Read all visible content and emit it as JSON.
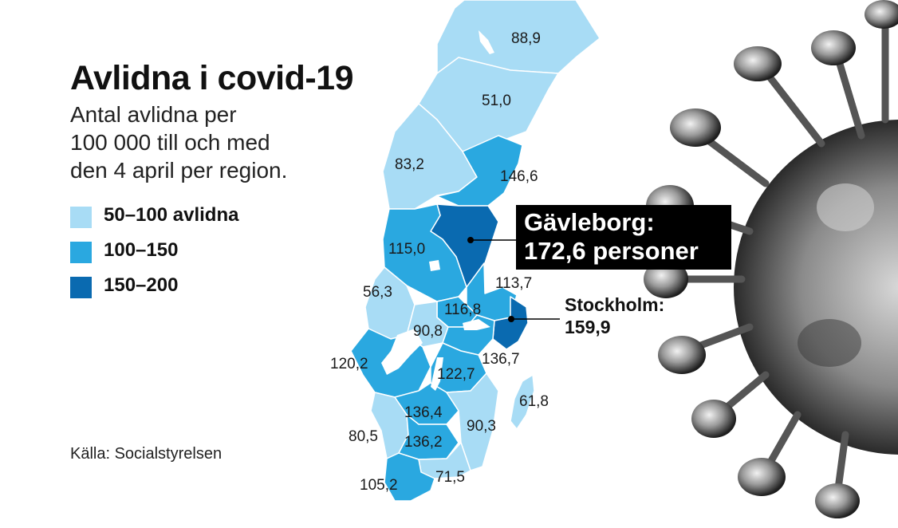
{
  "title": "Avlidna i covid-19",
  "subtitle_lines": [
    "Antal avlidna per",
    "100 000 till och med",
    "den 4 april per region."
  ],
  "legend": [
    {
      "label": "50–100 avlidna",
      "color": "#a8dcf5"
    },
    {
      "label": "100–150",
      "color": "#2aa8e0"
    },
    {
      "label": "150–200",
      "color": "#0a6ab0"
    }
  ],
  "source": "Källa: Socialstyrelsen",
  "regions": [
    {
      "name": "Norrbotten",
      "value": "88,9"
    },
    {
      "name": "Västerbotten",
      "value": "51,0"
    },
    {
      "name": "Jämtland",
      "value": "83,2"
    },
    {
      "name": "Västernorrland",
      "value": "146,6"
    },
    {
      "name": "Gävleborg",
      "value": "172,6"
    },
    {
      "name": "Dalarna",
      "value": "115,0"
    },
    {
      "name": "Uppsala",
      "value": "113,7"
    },
    {
      "name": "Värmland",
      "value": "56,3"
    },
    {
      "name": "Västmanland",
      "value": "116,8"
    },
    {
      "name": "Örebro",
      "value": "90,8"
    },
    {
      "name": "Stockholm",
      "value": "159,9"
    },
    {
      "name": "Södermanland",
      "value": "136,7"
    },
    {
      "name": "Västra Götaland",
      "value": "120,2"
    },
    {
      "name": "Östergötland",
      "value": "122,7"
    },
    {
      "name": "Jönköping",
      "value": "136,4"
    },
    {
      "name": "Gotland",
      "value": "61,8"
    },
    {
      "name": "Kalmar",
      "value": "90,3"
    },
    {
      "name": "Halland",
      "value": "80,5"
    },
    {
      "name": "Kronoberg",
      "value": "136,2"
    },
    {
      "name": "Skåne",
      "value": "105,2"
    },
    {
      "name": "Blekinge",
      "value": "71,5"
    }
  ],
  "callouts": {
    "gavleborg_line1": "Gävleborg:",
    "gavleborg_line2": "172,6 personer",
    "stockholm_line1": "Stockholm:",
    "stockholm_line2": "159,9"
  }
}
